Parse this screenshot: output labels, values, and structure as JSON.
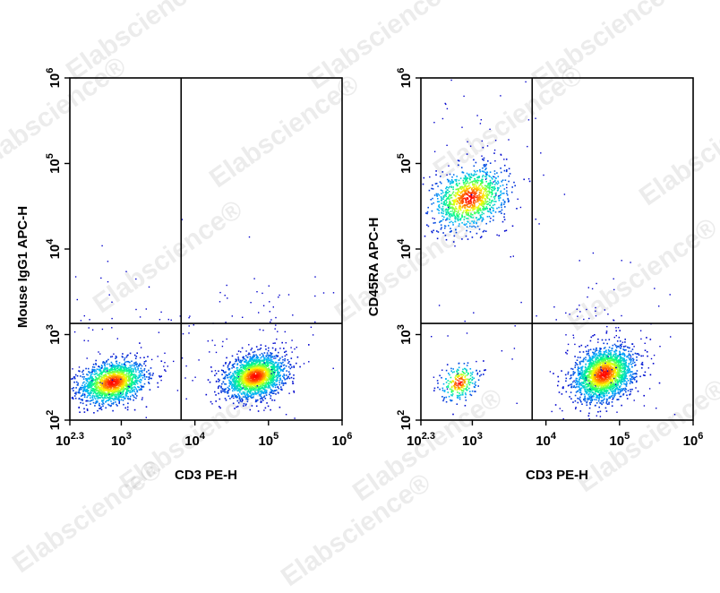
{
  "watermark": {
    "text": "Elabscience®"
  },
  "chart_data": [
    {
      "type": "scatter",
      "title": "",
      "xlabel": "CD3 PE-H",
      "ylabel": "Mouse IgG1 APC-H",
      "xscale": "log",
      "yscale": "log",
      "xlim": [
        200,
        1000000
      ],
      "ylim": [
        100,
        1000000
      ],
      "x_ticks": [
        {
          "value": 200,
          "base": "10",
          "exp": "2.3"
        },
        {
          "value": 1000,
          "base": "10",
          "exp": "3"
        },
        {
          "value": 10000,
          "base": "10",
          "exp": "4"
        },
        {
          "value": 100000,
          "base": "10",
          "exp": "5"
        },
        {
          "value": 1000000,
          "base": "10",
          "exp": "6"
        }
      ],
      "y_ticks": [
        {
          "value": 100,
          "base": "10",
          "exp": "2"
        },
        {
          "value": 1000,
          "base": "10",
          "exp": "3"
        },
        {
          "value": 10000,
          "base": "10",
          "exp": "4"
        },
        {
          "value": 100000,
          "base": "10",
          "exp": "5"
        },
        {
          "value": 1000000,
          "base": "10",
          "exp": "6"
        }
      ],
      "gate": {
        "x": 6500,
        "y": 1350
      },
      "populations": [
        {
          "name": "",
          "center_x": 750,
          "center_y": 280,
          "spread_log_x": 0.22,
          "spread_log_y": 0.12,
          "count": 1600
        },
        {
          "name": "",
          "center_x": 65000,
          "center_y": 330,
          "spread_log_x": 0.2,
          "spread_log_y": 0.12,
          "count": 1900
        }
      ],
      "grid": false,
      "density_colormap": [
        "#0000cc",
        "#00b0ff",
        "#00ff80",
        "#ffff00",
        "#ff0000"
      ]
    },
    {
      "type": "scatter",
      "title": "",
      "xlabel": "CD3 PE-H",
      "ylabel": "CD45RA APC-H",
      "xscale": "log",
      "yscale": "log",
      "xlim": [
        200,
        1000000
      ],
      "ylim": [
        100,
        1000000
      ],
      "x_ticks": [
        {
          "value": 200,
          "base": "10",
          "exp": "2.3"
        },
        {
          "value": 1000,
          "base": "10",
          "exp": "3"
        },
        {
          "value": 10000,
          "base": "10",
          "exp": "4"
        },
        {
          "value": 100000,
          "base": "10",
          "exp": "5"
        },
        {
          "value": 1000000,
          "base": "10",
          "exp": "6"
        }
      ],
      "y_ticks": [
        {
          "value": 100,
          "base": "10",
          "exp": "2"
        },
        {
          "value": 1000,
          "base": "10",
          "exp": "3"
        },
        {
          "value": 10000,
          "base": "10",
          "exp": "4"
        },
        {
          "value": 100000,
          "base": "10",
          "exp": "5"
        },
        {
          "value": 1000000,
          "base": "10",
          "exp": "6"
        }
      ],
      "gate": {
        "x": 6500,
        "y": 1350
      },
      "populations": [
        {
          "name": "",
          "center_x": 900,
          "center_y": 40000,
          "spread_log_x": 0.25,
          "spread_log_y": 0.17,
          "count": 1100
        },
        {
          "name": "",
          "center_x": 650,
          "center_y": 280,
          "spread_log_x": 0.12,
          "spread_log_y": 0.1,
          "count": 250
        },
        {
          "name": "",
          "center_x": 60000,
          "center_y": 350,
          "spread_log_x": 0.2,
          "spread_log_y": 0.15,
          "count": 2000
        }
      ],
      "grid": false,
      "density_colormap": [
        "#0000cc",
        "#00b0ff",
        "#00ff80",
        "#ffff00",
        "#ff0000"
      ]
    }
  ]
}
